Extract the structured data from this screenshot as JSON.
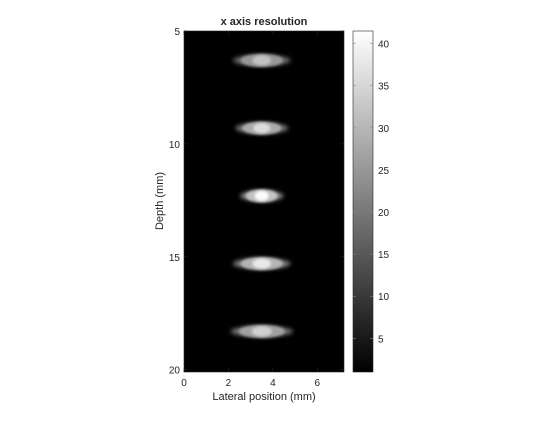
{
  "chart_data": {
    "type": "heatmap",
    "title": "x axis resolution",
    "xlabel": "Lateral position (mm)",
    "ylabel": "Depth (mm)",
    "xlim": [
      0,
      7.2
    ],
    "ylim": [
      20.1,
      5
    ],
    "x_ticks": [
      0,
      2,
      4,
      6
    ],
    "y_ticks": [
      5,
      10,
      15,
      20
    ],
    "colormap": "gray",
    "colorbar": {
      "range": [
        1,
        41.5
      ],
      "ticks": [
        5,
        10,
        15,
        20,
        25,
        30,
        35,
        40
      ]
    },
    "background_value": 1,
    "blobs": [
      {
        "name": "target-1",
        "center_x": 3.5,
        "center_y": 6.3,
        "half_width": 1.2,
        "peak": 32
      },
      {
        "name": "target-2",
        "center_x": 3.5,
        "center_y": 9.3,
        "half_width": 1.1,
        "peak": 36
      },
      {
        "name": "target-3",
        "center_x": 3.5,
        "center_y": 12.3,
        "half_width": 0.9,
        "peak": 41
      },
      {
        "name": "target-4",
        "center_x": 3.5,
        "center_y": 15.3,
        "half_width": 1.2,
        "peak": 38
      },
      {
        "name": "target-5",
        "center_x": 3.5,
        "center_y": 18.3,
        "half_width": 1.3,
        "peak": 34
      }
    ]
  }
}
